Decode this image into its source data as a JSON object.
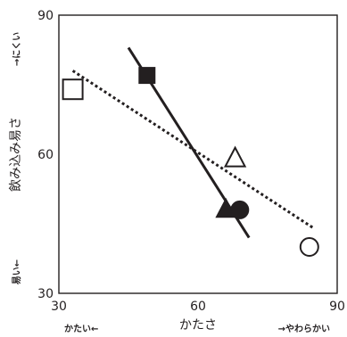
{
  "chart_data": {
    "type": "scatter",
    "xlabel": "かたさ",
    "ylabel": "飲み込み易さ",
    "xlim": [
      30,
      90
    ],
    "ylim": [
      30,
      90
    ],
    "xticks": [
      30,
      60,
      90
    ],
    "yticks": [
      30,
      60,
      90
    ],
    "x_hint_low": "かたい←",
    "x_hint_high": "→やわらかい",
    "y_hint_high": "→にくい",
    "y_hint_low": "易い←",
    "grid": false,
    "legend": "none",
    "points": [
      {
        "marker": "square-open",
        "x": 33,
        "y": 74
      },
      {
        "marker": "square-filled",
        "x": 49,
        "y": 77
      },
      {
        "marker": "triangle-open",
        "x": 68,
        "y": 59
      },
      {
        "marker": "triangle-filled",
        "x": 66,
        "y": 48
      },
      {
        "marker": "circle-filled",
        "x": 69,
        "y": 48
      },
      {
        "marker": "circle-open",
        "x": 84,
        "y": 40
      }
    ],
    "lines": [
      {
        "style": "solid",
        "x": [
          45,
          71
        ],
        "y": [
          83,
          42
        ]
      },
      {
        "style": "dotted",
        "x": [
          33,
          85
        ],
        "y": [
          78,
          44
        ]
      }
    ]
  }
}
